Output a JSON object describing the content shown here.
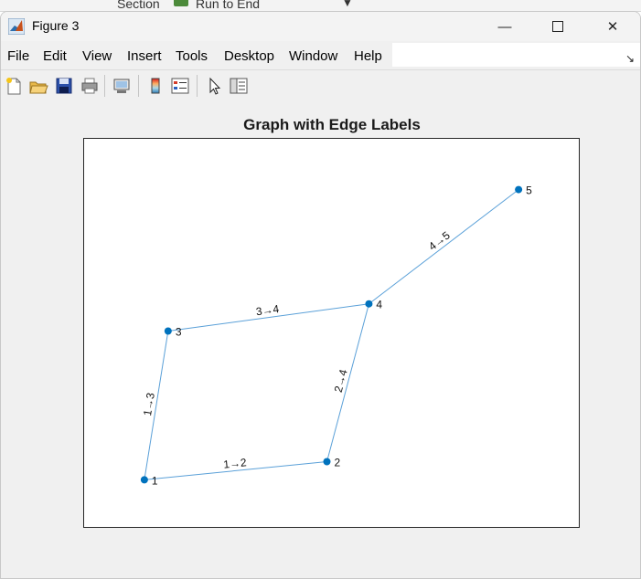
{
  "background_window": {
    "section_label": "Section",
    "run_label": "Run to End",
    "run_icon": "run-to-end-icon",
    "dropdown_icon": "dropdown-triangle-icon"
  },
  "window": {
    "title": "Figure 3",
    "app_icon": "matlab-logo-icon",
    "controls": {
      "minimize_icon": "minimize-icon",
      "maximize_icon": "maximize-icon",
      "close_icon": "close-icon",
      "minimize_glyph": "—",
      "close_glyph": "✕"
    }
  },
  "menu": {
    "items": [
      "File",
      "Edit",
      "View",
      "Insert",
      "Tools",
      "Desktop",
      "Window",
      "Help"
    ],
    "dock_glyph": "↘",
    "dock_icon": "dock-arrow-icon"
  },
  "toolbar": {
    "buttons": [
      {
        "icon": "new-figure-icon"
      },
      {
        "icon": "open-file-icon"
      },
      {
        "icon": "save-icon"
      },
      {
        "icon": "print-icon"
      },
      {
        "icon": "link-plot-icon"
      },
      {
        "icon": "insert-colorbar-icon"
      },
      {
        "icon": "insert-legend-icon"
      },
      {
        "icon": "edit-plot-pointer-icon"
      },
      {
        "icon": "property-inspector-icon"
      }
    ]
  },
  "figure": {
    "title": "Graph with Edge Labels",
    "colors": {
      "node": "#0072bd",
      "edge": "#5aa0d8",
      "text": "#111111"
    }
  },
  "chart_data": {
    "type": "graph",
    "title": "Graph with Edge Labels",
    "nodes": [
      {
        "id": "1",
        "x": 0,
        "y": 0
      },
      {
        "id": "2",
        "x": 1,
        "y": 0.1
      },
      {
        "id": "3",
        "x": 0.13,
        "y": 0.82
      },
      {
        "id": "4",
        "x": 1.23,
        "y": 0.97
      },
      {
        "id": "5",
        "x": 2.05,
        "y": 1.6
      }
    ],
    "edges": [
      {
        "source": "1",
        "target": "2",
        "label": "1→2"
      },
      {
        "source": "1",
        "target": "3",
        "label": "1→3"
      },
      {
        "source": "2",
        "target": "4",
        "label": "2→4"
      },
      {
        "source": "3",
        "target": "4",
        "label": "3→4"
      },
      {
        "source": "4",
        "target": "5",
        "label": "4→5"
      }
    ],
    "xlim": [
      -0.33,
      2.38
    ],
    "ylim": [
      -0.26,
      1.88
    ],
    "grid": false
  }
}
